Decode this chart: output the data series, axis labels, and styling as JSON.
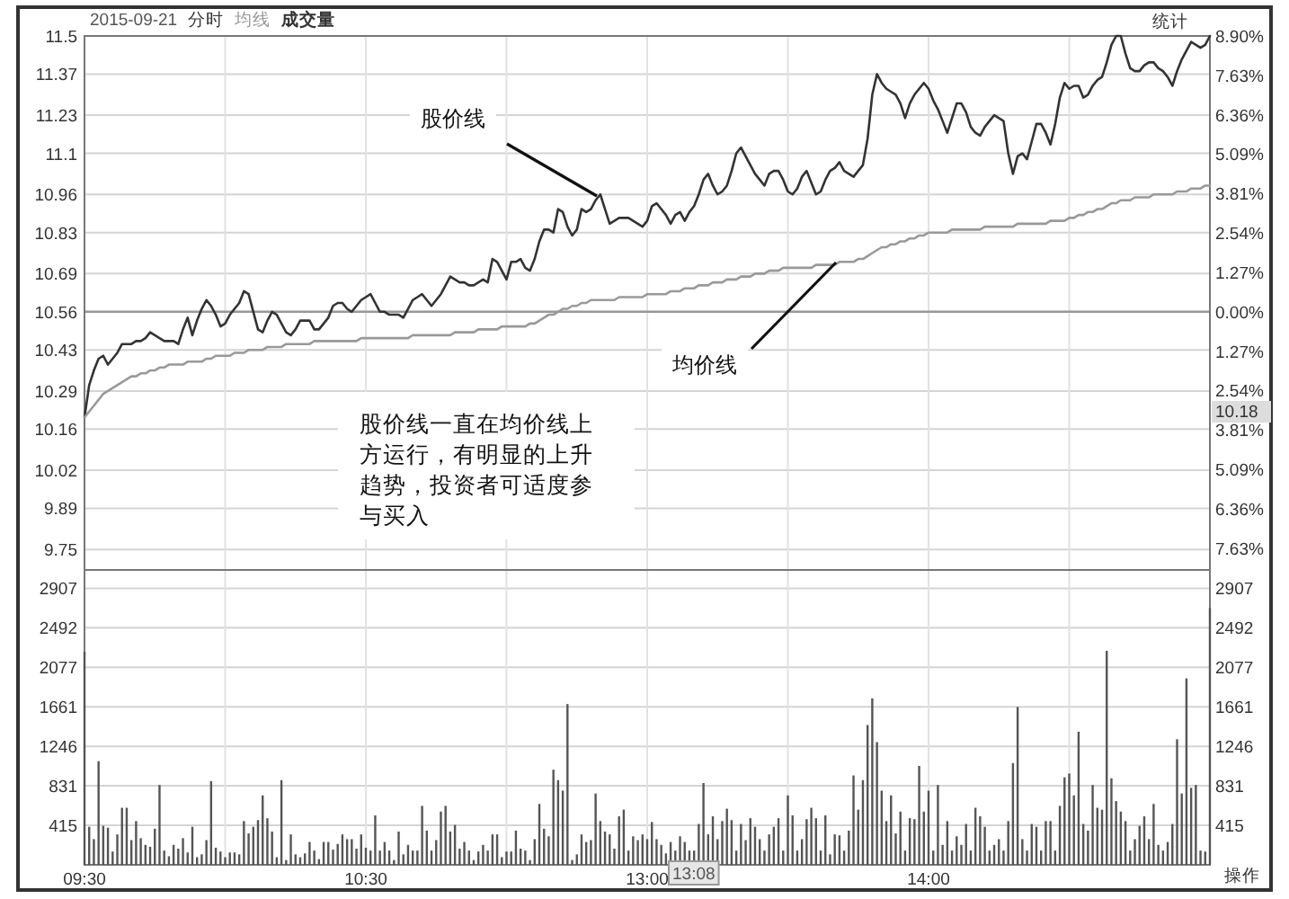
{
  "chart_data": [
    {
      "type": "line",
      "title": "2015-09-21",
      "legend": "top left",
      "grid": true,
      "tick_labels": "y",
      "categories": [
        null,
        null,
        null,
        null,
        null,
        null,
        null,
        null,
        null,
        null,
        null,
        null,
        null,
        null,
        null,
        null,
        null,
        null,
        null,
        null,
        null,
        null,
        null,
        null,
        null,
        null,
        null,
        null,
        null,
        null,
        null,
        null,
        null,
        null,
        null,
        null,
        null,
        null,
        null,
        null,
        null,
        null,
        null,
        null,
        null,
        null,
        null,
        null,
        null,
        null,
        null,
        null,
        null,
        null,
        null,
        null,
        null,
        null,
        null,
        null,
        null,
        null,
        null,
        null,
        null,
        null,
        null,
        null,
        null,
        null,
        null,
        null,
        null,
        null,
        null,
        null,
        null,
        null,
        null,
        null,
        null,
        null,
        null,
        null,
        null,
        null,
        null,
        null,
        null,
        null,
        null,
        null,
        null,
        null,
        null,
        null,
        null,
        null,
        null,
        null,
        null,
        null,
        null,
        null,
        null,
        null,
        null,
        null,
        null,
        null,
        null,
        null,
        null,
        null,
        null,
        null,
        null,
        null,
        null,
        null,
        null,
        null,
        null,
        null,
        null,
        null,
        null,
        null,
        null,
        null,
        null,
        null,
        null,
        null,
        null,
        null,
        null,
        null,
        null,
        null,
        null,
        null,
        null,
        null,
        null,
        null,
        null,
        null,
        null,
        null,
        null,
        null,
        null,
        null,
        null,
        null,
        null,
        null,
        null,
        null,
        null,
        null,
        null,
        null,
        null,
        null,
        null,
        null,
        null,
        null,
        null,
        null,
        null,
        null,
        null,
        null,
        null,
        null,
        null,
        null,
        null,
        null,
        null,
        null,
        null,
        null,
        null,
        null,
        null,
        null,
        null,
        null,
        null,
        null,
        null,
        null,
        null,
        null,
        null,
        null,
        null,
        null,
        null,
        null,
        null,
        null,
        null,
        null,
        null,
        null,
        null,
        null,
        null,
        null,
        null,
        null,
        null,
        null,
        null,
        null,
        null,
        null,
        null,
        null,
        null,
        null,
        null,
        null,
        null,
        null,
        null,
        null,
        null,
        null,
        null,
        null,
        null,
        null,
        null,
        null,
        null
      ],
      "ylim": [
        9.68,
        11.5
      ],
      "yticks": [
        11.5,
        11.37,
        11.23,
        11.1,
        10.96,
        10.83,
        10.69,
        10.56,
        10.43,
        10.29,
        10.16,
        10.02,
        9.89,
        9.75
      ],
      "y2lim": [
        -8.33,
        8.9
      ],
      "y2ticks": [
        {
          "value": 8.9,
          "label": "8.90%"
        },
        {
          "value": 7.63,
          "label": "7.63%"
        },
        {
          "value": 6.36,
          "label": "6.36%"
        },
        {
          "value": 5.09,
          "label": "5.09%"
        },
        {
          "value": 3.81,
          "label": "3.81%"
        },
        {
          "value": 2.54,
          "label": "2.54%"
        },
        {
          "value": 1.27,
          "label": "1.27%"
        },
        {
          "value": 0,
          "label": "0.00%"
        },
        {
          "value": -1.27,
          "label": "1.27%"
        },
        {
          "value": -2.54,
          "label": "2.54%"
        },
        {
          "value": -3.81,
          "label": "3.81%"
        },
        {
          "value": -5.09,
          "label": "5.09%"
        },
        {
          "value": -6.36,
          "label": "6.36%"
        },
        {
          "value": -7.63,
          "label": "7.63%"
        }
      ],
      "ref_lines": [
        {
          "axis": "y",
          "value": 10.56,
          "color": "#999999"
        }
      ],
      "series": [
        {
          "name": "分时",
          "color": "#333333",
          "values": [
            10.2,
            10.31,
            10.36,
            10.4,
            10.41,
            10.38,
            10.4,
            10.42,
            10.45,
            10.45,
            10.45,
            10.46,
            10.46,
            10.47,
            10.49,
            10.48,
            10.47,
            10.46,
            10.46,
            10.46,
            10.45,
            10.5,
            10.54,
            10.48,
            10.53,
            10.57,
            10.6,
            10.58,
            10.55,
            10.51,
            10.52,
            10.55,
            10.57,
            10.59,
            10.63,
            10.62,
            10.56,
            10.5,
            10.49,
            10.53,
            10.56,
            10.55,
            10.52,
            10.49,
            10.48,
            10.5,
            10.53,
            10.53,
            10.53,
            10.5,
            10.5,
            10.52,
            10.54,
            10.58,
            10.59,
            10.59,
            10.57,
            10.56,
            10.58,
            10.6,
            10.61,
            10.62,
            10.59,
            10.56,
            10.56,
            10.55,
            10.55,
            10.55,
            10.54,
            10.57,
            10.6,
            10.61,
            10.62,
            10.6,
            10.58,
            10.6,
            10.62,
            10.65,
            10.68,
            10.67,
            10.66,
            10.66,
            10.65,
            10.65,
            10.66,
            10.67,
            10.66,
            10.74,
            10.73,
            10.7,
            10.67,
            10.73,
            10.73,
            10.74,
            10.71,
            10.7,
            10.74,
            10.8,
            10.84,
            10.84,
            10.83,
            10.91,
            10.9,
            10.85,
            10.82,
            10.84,
            10.91,
            10.9,
            10.91,
            10.94,
            10.96,
            10.91,
            10.86,
            10.87,
            10.88,
            10.88,
            10.88,
            10.87,
            10.86,
            10.85,
            10.87,
            10.92,
            10.93,
            10.91,
            10.89,
            10.86,
            10.89,
            10.9,
            10.87,
            10.9,
            10.92,
            10.96,
            11.01,
            11.03,
            10.99,
            10.96,
            10.97,
            10.99,
            11.04,
            11.1,
            11.12,
            11.09,
            11.06,
            11.03,
            11.01,
            10.99,
            11.03,
            11.04,
            11.04,
            11.01,
            10.97,
            10.96,
            10.98,
            11.02,
            11.04,
            11.0,
            10.96,
            10.97,
            11.01,
            11.04,
            11.05,
            11.07,
            11.04,
            11.03,
            11.02,
            11.04,
            11.06,
            11.15,
            11.3,
            11.37,
            11.34,
            11.32,
            11.31,
            11.3,
            11.27,
            11.22,
            11.27,
            11.3,
            11.32,
            11.34,
            11.32,
            11.28,
            11.25,
            11.21,
            11.17,
            11.22,
            11.27,
            11.27,
            11.24,
            11.19,
            11.17,
            11.16,
            11.19,
            11.21,
            11.23,
            11.22,
            11.21,
            11.1,
            11.03,
            11.09,
            11.1,
            11.08,
            11.14,
            11.2,
            11.2,
            11.17,
            11.13,
            11.2,
            11.29,
            11.34,
            11.32,
            11.33,
            11.33,
            11.29,
            11.3,
            11.33,
            11.35,
            11.36,
            11.41,
            11.47,
            11.5,
            11.5,
            11.44,
            11.39,
            11.38,
            11.38,
            11.4,
            11.41,
            11.41,
            11.39,
            11.38,
            11.36,
            11.33,
            11.38,
            11.42,
            11.45,
            11.48,
            11.47,
            11.46,
            11.47,
            11.5
          ]
        },
        {
          "name": "均线",
          "color": "#999999",
          "values": [
            10.2,
            10.22,
            10.24,
            10.26,
            10.28,
            10.29,
            10.3,
            10.31,
            10.32,
            10.33,
            10.34,
            10.34,
            10.35,
            10.35,
            10.36,
            10.36,
            10.37,
            10.37,
            10.38,
            10.38,
            10.38,
            10.38,
            10.39,
            10.39,
            10.39,
            10.39,
            10.4,
            10.4,
            10.41,
            10.41,
            10.41,
            10.41,
            10.42,
            10.42,
            10.42,
            10.43,
            10.43,
            10.43,
            10.43,
            10.44,
            10.44,
            10.44,
            10.44,
            10.45,
            10.45,
            10.45,
            10.45,
            10.45,
            10.45,
            10.46,
            10.46,
            10.46,
            10.46,
            10.46,
            10.46,
            10.46,
            10.46,
            10.46,
            10.46,
            10.47,
            10.47,
            10.47,
            10.47,
            10.47,
            10.47,
            10.47,
            10.47,
            10.47,
            10.47,
            10.47,
            10.48,
            10.48,
            10.48,
            10.48,
            10.48,
            10.48,
            10.48,
            10.48,
            10.48,
            10.49,
            10.49,
            10.49,
            10.49,
            10.49,
            10.5,
            10.5,
            10.5,
            10.5,
            10.5,
            10.51,
            10.51,
            10.51,
            10.51,
            10.51,
            10.51,
            10.52,
            10.52,
            10.53,
            10.54,
            10.55,
            10.55,
            10.56,
            10.57,
            10.57,
            10.58,
            10.58,
            10.59,
            10.59,
            10.6,
            10.6,
            10.6,
            10.6,
            10.6,
            10.6,
            10.61,
            10.61,
            10.61,
            10.61,
            10.61,
            10.61,
            10.62,
            10.62,
            10.62,
            10.62,
            10.62,
            10.63,
            10.63,
            10.63,
            10.64,
            10.64,
            10.64,
            10.65,
            10.65,
            10.65,
            10.66,
            10.66,
            10.66,
            10.67,
            10.67,
            10.67,
            10.68,
            10.68,
            10.68,
            10.69,
            10.69,
            10.69,
            10.7,
            10.7,
            10.7,
            10.71,
            10.71,
            10.71,
            10.71,
            10.71,
            10.71,
            10.71,
            10.72,
            10.72,
            10.72,
            10.72,
            10.72,
            10.73,
            10.73,
            10.73,
            10.73,
            10.74,
            10.74,
            10.75,
            10.76,
            10.77,
            10.78,
            10.78,
            10.79,
            10.79,
            10.8,
            10.8,
            10.81,
            10.81,
            10.82,
            10.82,
            10.83,
            10.83,
            10.83,
            10.83,
            10.83,
            10.84,
            10.84,
            10.84,
            10.84,
            10.84,
            10.84,
            10.84,
            10.85,
            10.85,
            10.85,
            10.85,
            10.85,
            10.85,
            10.85,
            10.86,
            10.86,
            10.86,
            10.86,
            10.86,
            10.86,
            10.86,
            10.87,
            10.87,
            10.87,
            10.87,
            10.88,
            10.88,
            10.89,
            10.89,
            10.9,
            10.9,
            10.91,
            10.91,
            10.92,
            10.93,
            10.93,
            10.94,
            10.94,
            10.94,
            10.95,
            10.95,
            10.95,
            10.95,
            10.96,
            10.96,
            10.96,
            10.96,
            10.96,
            10.97,
            10.97,
            10.97,
            10.98,
            10.98,
            10.98,
            10.99,
            10.99
          ]
        }
      ],
      "annotations": [
        "股价线",
        "均价线",
        "股价线一直在均价线上方运行，有明显的上升趋势，投资者可适度参与买入",
        "统计",
        "10.18",
        "成交量"
      ]
    },
    {
      "type": "bar",
      "grid": true,
      "categories": [
        "09:30",
        null,
        null,
        null,
        null,
        null,
        null,
        null,
        null,
        null,
        null,
        null,
        null,
        null,
        null,
        null,
        null,
        null,
        null,
        null,
        null,
        null,
        null,
        null,
        null,
        null,
        null,
        null,
        null,
        null,
        null,
        null,
        null,
        null,
        null,
        null,
        null,
        null,
        null,
        null,
        null,
        null,
        null,
        null,
        null,
        null,
        null,
        null,
        null,
        null,
        null,
        null,
        null,
        null,
        null,
        null,
        null,
        null,
        null,
        null,
        "10:30",
        null,
        null,
        null,
        null,
        null,
        null,
        null,
        null,
        null,
        null,
        null,
        null,
        null,
        null,
        null,
        null,
        null,
        null,
        null,
        null,
        null,
        null,
        null,
        null,
        null,
        null,
        null,
        null,
        null,
        null,
        null,
        null,
        null,
        null,
        null,
        null,
        null,
        null,
        null,
        null,
        null,
        null,
        null,
        null,
        null,
        null,
        null,
        null,
        null,
        null,
        null,
        null,
        null,
        null,
        null,
        null,
        null,
        null,
        null,
        "13:00",
        null,
        null,
        null,
        null,
        null,
        null,
        null,
        null,
        null,
        null,
        null,
        null,
        null,
        null,
        null,
        null,
        null,
        null,
        null,
        null,
        null,
        null,
        null,
        null,
        null,
        null,
        null,
        null,
        null,
        null,
        null,
        null,
        null,
        null,
        null,
        null,
        null,
        null,
        null,
        null,
        null,
        null,
        null,
        null,
        null,
        null,
        null,
        null,
        null,
        null,
        null,
        null,
        null,
        null,
        null,
        null,
        null,
        null,
        null,
        "14:00",
        null,
        null,
        null,
        null,
        null,
        null,
        null,
        null,
        null,
        null,
        null,
        null,
        null,
        null,
        null,
        null,
        null,
        null,
        null,
        null,
        null,
        null,
        null,
        null,
        null,
        null,
        null,
        null,
        null,
        null,
        null,
        null,
        null,
        null,
        null,
        null,
        null,
        null,
        null,
        null,
        null,
        null,
        null,
        null,
        null,
        null,
        null,
        null,
        null,
        null,
        null,
        null,
        null,
        null,
        null,
        null,
        null,
        null,
        null,
        null
      ],
      "ylim": [
        0,
        3100
      ],
      "yticks": [
        415,
        831,
        1246,
        1661,
        2077,
        2492,
        2907
      ],
      "y2lim": [
        0,
        3100
      ],
      "y2ticks": [
        415,
        831,
        1246,
        1661,
        2077,
        2492,
        2907
      ],
      "series": [
        {
          "color": "#555555",
          "values": [
            2240,
            400,
            270,
            1090,
            410,
            390,
            140,
            320,
            600,
            600,
            260,
            460,
            280,
            210,
            190,
            380,
            840,
            150,
            90,
            210,
            170,
            280,
            130,
            400,
            80,
            110,
            260,
            880,
            180,
            140,
            80,
            130,
            130,
            110,
            460,
            330,
            400,
            470,
            730,
            490,
            350,
            80,
            890,
            50,
            320,
            110,
            80,
            120,
            240,
            150,
            60,
            240,
            240,
            160,
            220,
            320,
            270,
            270,
            170,
            320,
            180,
            150,
            520,
            150,
            240,
            150,
            50,
            350,
            110,
            210,
            150,
            150,
            620,
            360,
            150,
            260,
            560,
            620,
            350,
            420,
            170,
            240,
            150,
            50,
            140,
            210,
            150,
            320,
            320,
            80,
            140,
            140,
            360,
            170,
            150,
            50,
            270,
            640,
            380,
            300,
            1000,
            890,
            780,
            1690,
            50,
            110,
            320,
            240,
            260,
            750,
            460,
            350,
            320,
            170,
            510,
            580,
            150,
            300,
            260,
            320,
            270,
            450,
            270,
            210,
            120,
            240,
            150,
            300,
            240,
            150,
            150,
            430,
            860,
            320,
            510,
            270,
            460,
            590,
            470,
            150,
            430,
            260,
            490,
            400,
            270,
            150,
            320,
            400,
            490,
            150,
            730,
            520,
            150,
            270,
            480,
            600,
            490,
            150,
            520,
            110,
            320,
            310,
            150,
            360,
            940,
            580,
            890,
            1470,
            1750,
            1290,
            780,
            460,
            730,
            330,
            560,
            150,
            490,
            480,
            1040,
            560,
            780,
            150,
            840,
            210,
            460,
            150,
            300,
            210,
            430,
            150,
            600,
            510,
            400,
            150,
            210,
            270,
            150,
            460,
            1070,
            1660,
            270,
            150,
            430,
            400,
            150,
            460,
            460,
            150,
            620,
            920,
            960,
            730,
            1400,
            430,
            360,
            840,
            600,
            580,
            2250,
            910,
            670,
            560,
            460,
            150,
            270,
            410,
            510,
            270,
            640,
            210,
            150,
            240,
            430,
            1320,
            750,
            1960,
            810,
            840,
            150,
            140,
            2700
          ]
        }
      ],
      "annotations": [
        "13:08",
        "操作"
      ]
    }
  ]
}
